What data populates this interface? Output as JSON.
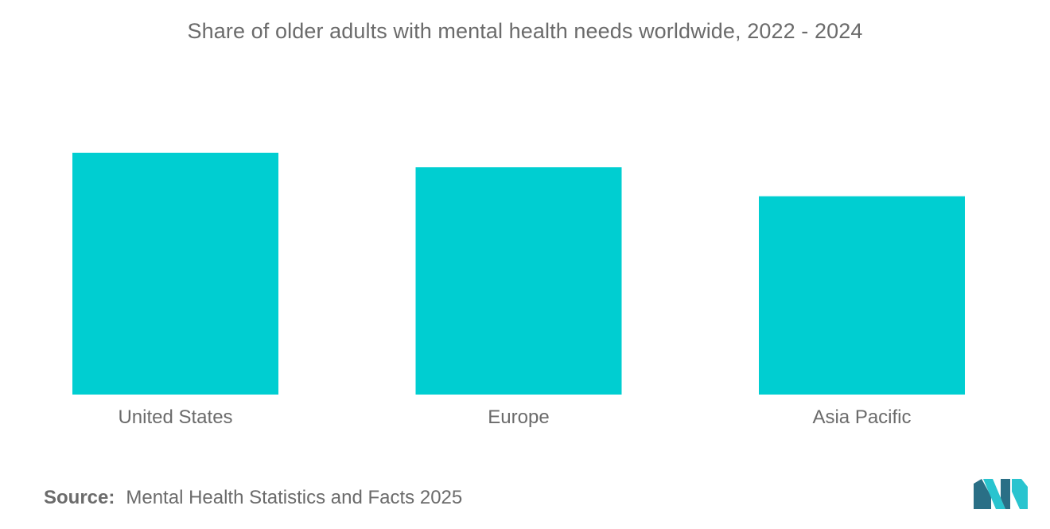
{
  "chart_data": {
    "type": "bar",
    "title": "Share of older adults with mental health needs worldwide, 2022 - 2024",
    "categories": [
      "United States",
      "Europe",
      "Asia Pacific"
    ],
    "values": [
      100,
      94,
      82
    ],
    "xlabel": "",
    "ylabel": "",
    "ylim": [
      0,
      100
    ],
    "grid": false,
    "bar_color": "#00ced1"
  },
  "source": {
    "label": "Source:",
    "text": "Mental Health Statistics and Facts 2025"
  },
  "colors": {
    "text": "#6b6b6b",
    "logo_dark": "#2a6f86",
    "logo_light": "#29c4cf"
  }
}
